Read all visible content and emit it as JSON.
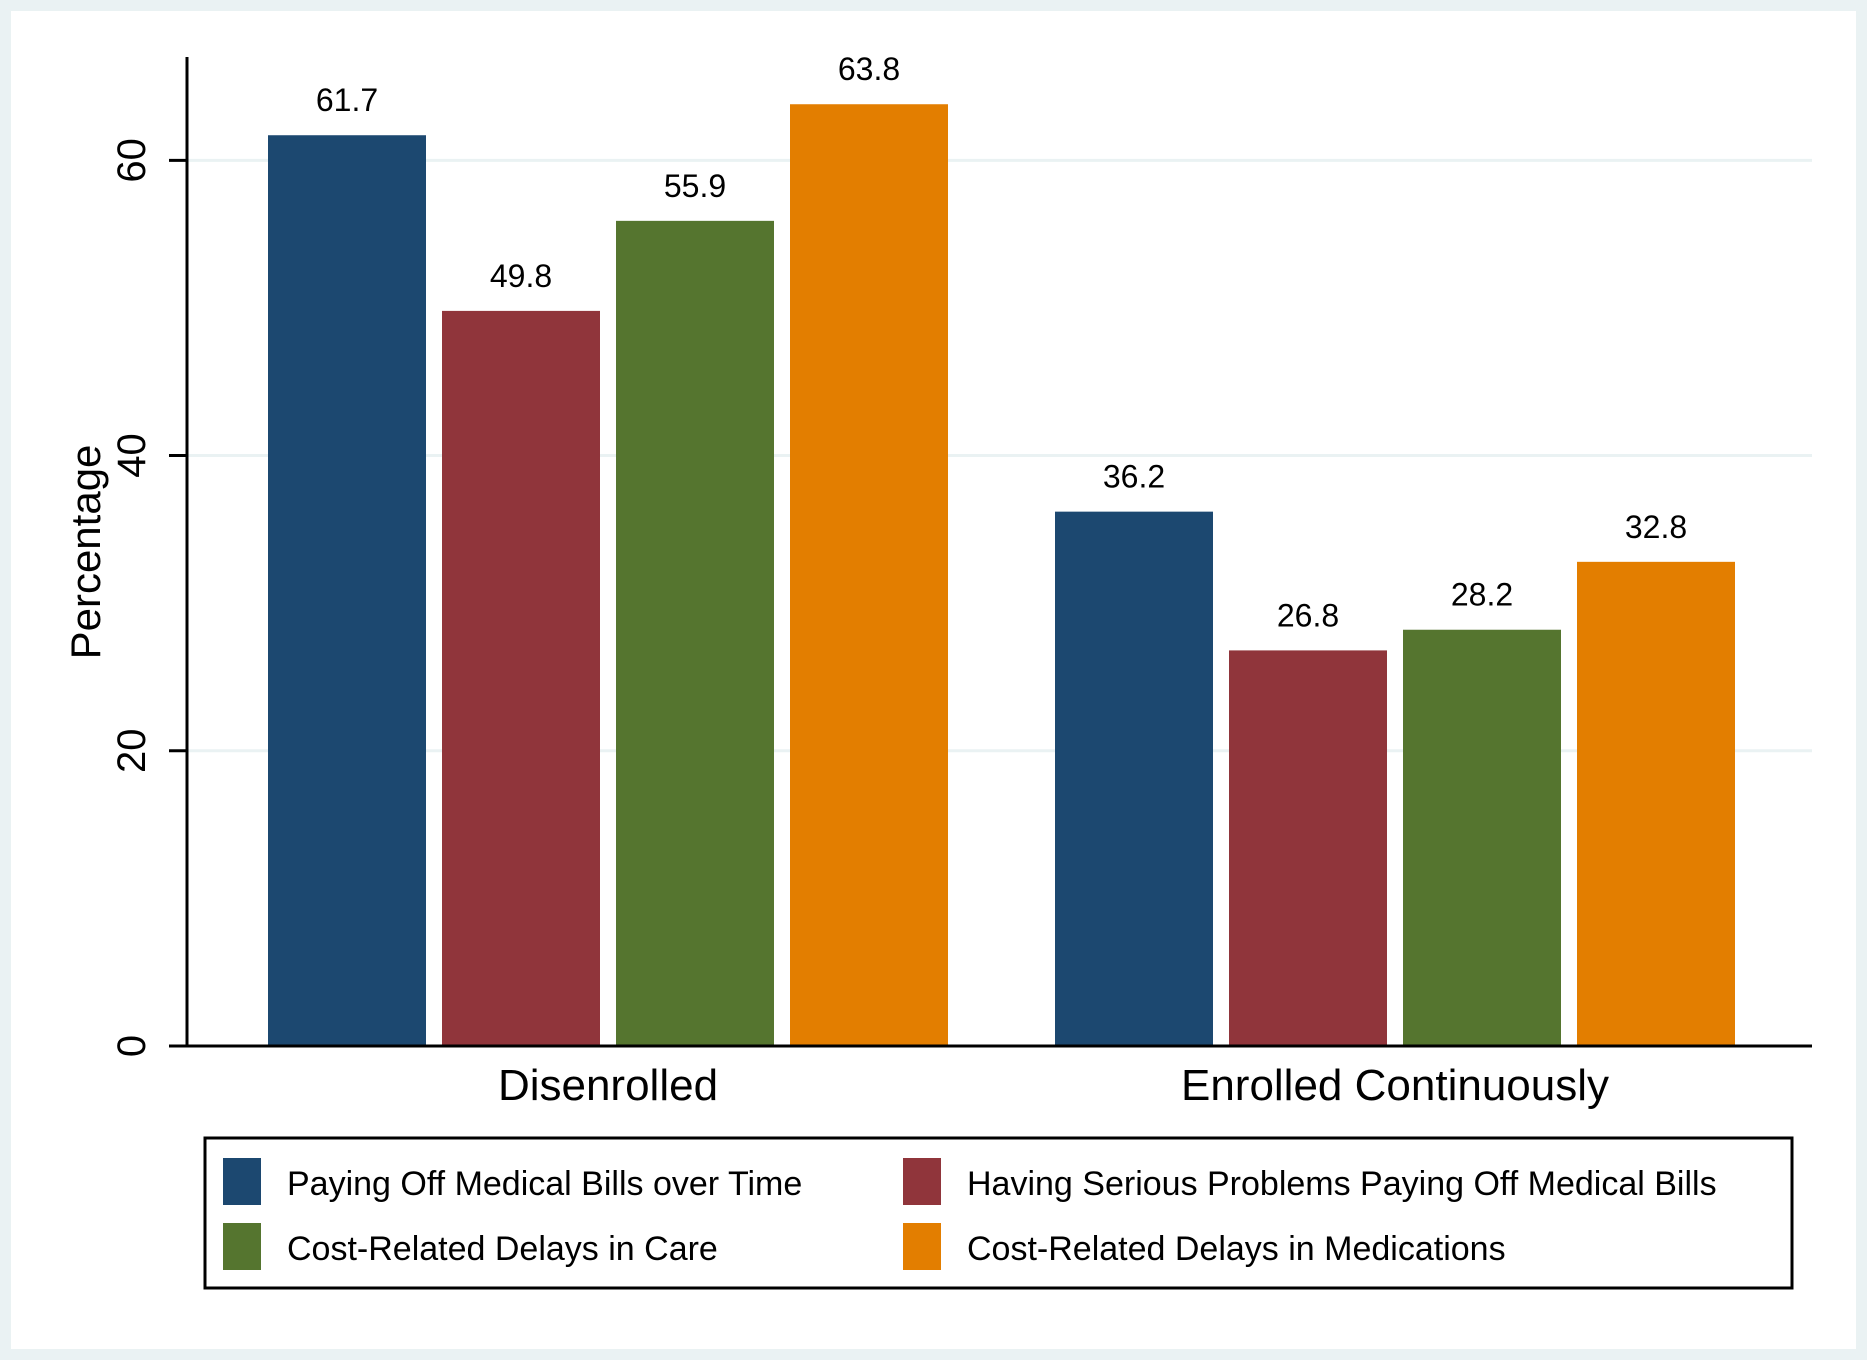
{
  "chart_data": {
    "type": "bar",
    "categories": [
      "Disenrolled",
      "Enrolled Continuously"
    ],
    "series": [
      {
        "name": "Paying Off Medical Bills over Time",
        "color": "#1c4870",
        "values": [
          61.7,
          36.2
        ],
        "labels": [
          "61.7",
          "36.2"
        ]
      },
      {
        "name": "Having Serious Problems Paying Off Medical Bills",
        "color": "#90353b",
        "values": [
          49.8,
          26.8
        ],
        "labels": [
          "49.8",
          "26.8"
        ]
      },
      {
        "name": "Cost-Related Delays in Care",
        "color": "#55752f",
        "values": [
          55.9,
          28.2
        ],
        "labels": [
          "55.9",
          "28.2"
        ]
      },
      {
        "name": "Cost-Related Delays in Medications",
        "color": "#e37e00",
        "values": [
          63.8,
          32.8
        ],
        "labels": [
          "63.8",
          "32.8"
        ]
      }
    ],
    "ylabel": "Percentage",
    "xlabel": "",
    "ylim": [
      0,
      67
    ],
    "yticks": [
      "0",
      "20",
      "40",
      "60"
    ],
    "grid": true,
    "legend_position": "bottom",
    "colors": {
      "outer_background": "#eaf2f3",
      "plot_background": "#ffffff",
      "gridline": "#eaf2f3"
    }
  }
}
